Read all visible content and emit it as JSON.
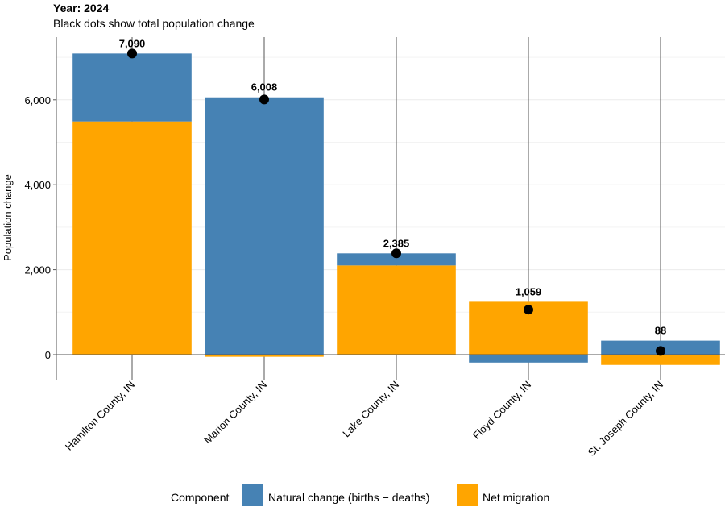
{
  "chart_data": {
    "type": "bar",
    "stacked": true,
    "title": "Year: 2024",
    "subtitle": "Black dots show total population change",
    "xlabel": "",
    "ylabel": "Population change",
    "ylim": [
      -600,
      7300
    ],
    "yticks": [
      0,
      2000,
      4000,
      6000
    ],
    "ytick_labels": [
      "0",
      "2,000",
      "4,000",
      "6,000"
    ],
    "minor_gridlines": [
      1000,
      3000,
      5000,
      7000
    ],
    "grid": true,
    "categories": [
      "Hamilton County, IN",
      "Marion County, IN",
      "Lake County, IN",
      "Floyd County, IN",
      "St. Joseph County, IN"
    ],
    "series": [
      {
        "name": "Natural change (births − deaths)",
        "color": "#4682b4",
        "values": [
          1600,
          6058,
          285,
          -186,
          330
        ]
      },
      {
        "name": "Net migration",
        "color": "#ffa500",
        "values": [
          5490,
          -50,
          2100,
          1245,
          -242
        ]
      }
    ],
    "totals": [
      7090,
      6008,
      2385,
      1059,
      88
    ],
    "total_labels": [
      "7,090",
      "6,008",
      "2,385",
      "1,059",
      "88"
    ],
    "legend": {
      "title": "Component",
      "position": "bottom"
    }
  }
}
